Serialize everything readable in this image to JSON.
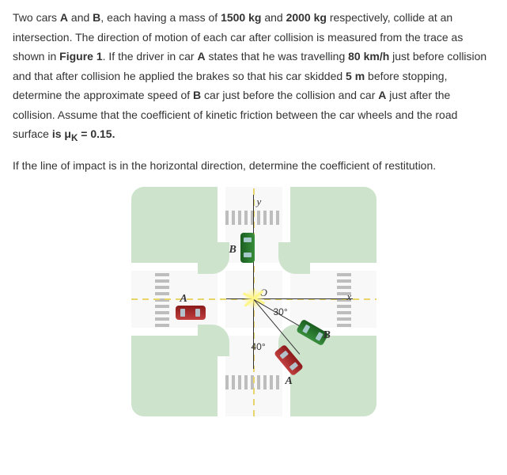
{
  "problem": {
    "para1_parts": [
      {
        "t": "Two cars ",
        "b": false
      },
      {
        "t": "A",
        "b": true
      },
      {
        "t": " and ",
        "b": false
      },
      {
        "t": "B",
        "b": true
      },
      {
        "t": ", each having a mass of ",
        "b": false
      },
      {
        "t": "1500 kg",
        "b": true
      },
      {
        "t": " and ",
        "b": false
      },
      {
        "t": "2000 kg",
        "b": true
      },
      {
        "t": " respectively, collide at an intersection. The direction of motion of each car after collision is measured from the trace as shown in ",
        "b": false
      },
      {
        "t": "Figure 1",
        "b": true
      },
      {
        "t": ".  If the driver in car ",
        "b": false
      },
      {
        "t": "A",
        "b": true
      },
      {
        "t": " states that he was travelling ",
        "b": false
      },
      {
        "t": "80 km/h",
        "b": true
      },
      {
        "t": " just before collision and that after collision he applied the brakes so that his car skidded ",
        "b": false
      },
      {
        "t": "5 m",
        "b": true
      },
      {
        "t": " before stopping, determine the approximate speed of ",
        "b": false
      },
      {
        "t": "B",
        "b": true
      },
      {
        "t": " car  just before the collision and car ",
        "b": false
      },
      {
        "t": "A",
        "b": true
      },
      {
        "t": " just after the collision. Assume that the coefficient of kinetic friction between the car wheels and the road surface ",
        "b": false
      },
      {
        "t": "is μ",
        "b": true
      },
      {
        "t": "K",
        "b": true,
        "sub": true
      },
      {
        "t": " = 0.15.",
        "b": true
      }
    ],
    "para2": "If the line of impact is in the horizontal direction, determine the coefficient of restitution."
  },
  "figure": {
    "colors": {
      "grass": "#cde3cc",
      "road": "#f8f8f8",
      "curb": "#ffffff",
      "lane": "#e8d56a",
      "carA": "#c14040",
      "carB": "#388e3c",
      "burst": "#fff68a"
    },
    "axes": {
      "x_label": "x",
      "y_label": "y",
      "origin_label": "O"
    },
    "angles": {
      "B_after_deg": "30°",
      "A_after_deg": "40°"
    },
    "labels": {
      "A_before": "A",
      "B_before": "B",
      "A_after": "A",
      "B_after": "B"
    }
  }
}
